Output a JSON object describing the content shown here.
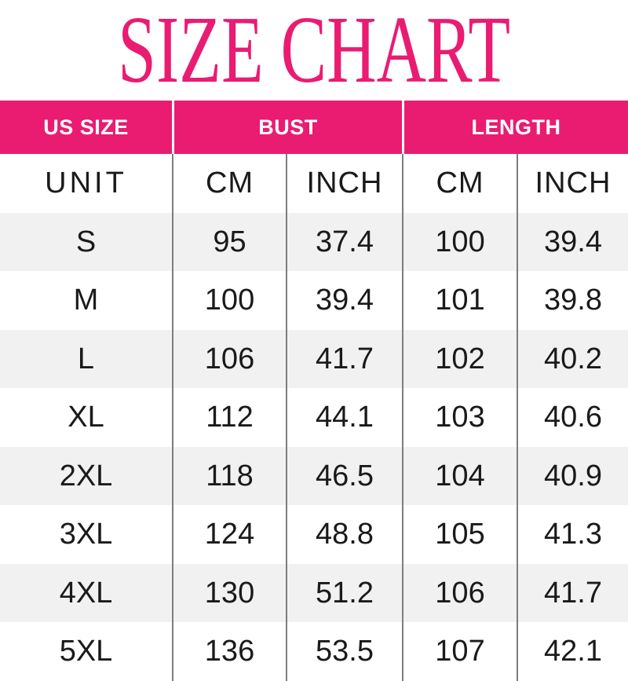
{
  "title": "SIZE CHART",
  "colors": {
    "accent_pink": "#E91C72",
    "header_text": "#FFFFFF",
    "row_alt_gray": "#F1F1F1",
    "divider_gray": "#7D7D7D",
    "body_text": "#1A1A1A"
  },
  "table": {
    "columns": [
      "US SIZE",
      "BUST",
      "LENGTH"
    ],
    "unit_row": {
      "label": "UNIT",
      "units": [
        "CM",
        "INCH",
        "CM",
        "INCH"
      ]
    },
    "rows": [
      {
        "size": "S",
        "bust_cm": "95",
        "bust_inch": "37.4",
        "length_cm": "100",
        "length_inch": "39.4"
      },
      {
        "size": "M",
        "bust_cm": "100",
        "bust_inch": "39.4",
        "length_cm": "101",
        "length_inch": "39.8"
      },
      {
        "size": "L",
        "bust_cm": "106",
        "bust_inch": "41.7",
        "length_cm": "102",
        "length_inch": "40.2"
      },
      {
        "size": "XL",
        "bust_cm": "112",
        "bust_inch": "44.1",
        "length_cm": "103",
        "length_inch": "40.6"
      },
      {
        "size": "2XL",
        "bust_cm": "118",
        "bust_inch": "46.5",
        "length_cm": "104",
        "length_inch": "40.9"
      },
      {
        "size": "3XL",
        "bust_cm": "124",
        "bust_inch": "48.8",
        "length_cm": "105",
        "length_inch": "41.3"
      },
      {
        "size": "4XL",
        "bust_cm": "130",
        "bust_inch": "51.2",
        "length_cm": "106",
        "length_inch": "41.7"
      },
      {
        "size": "5XL",
        "bust_cm": "136",
        "bust_inch": "53.5",
        "length_cm": "107",
        "length_inch": "42.1"
      }
    ]
  },
  "chart_data": {
    "type": "table",
    "title": "SIZE CHART",
    "columns": [
      "US SIZE",
      "BUST CM",
      "BUST INCH",
      "LENGTH CM",
      "LENGTH INCH"
    ],
    "rows": [
      [
        "S",
        95,
        37.4,
        100,
        39.4
      ],
      [
        "M",
        100,
        39.4,
        101,
        39.8
      ],
      [
        "L",
        106,
        41.7,
        102,
        40.2
      ],
      [
        "XL",
        112,
        44.1,
        103,
        40.6
      ],
      [
        "2XL",
        118,
        46.5,
        104,
        40.9
      ],
      [
        "3XL",
        124,
        48.8,
        105,
        41.3
      ],
      [
        "4XL",
        130,
        51.2,
        106,
        41.7
      ],
      [
        "5XL",
        136,
        53.5,
        107,
        42.1
      ]
    ]
  }
}
